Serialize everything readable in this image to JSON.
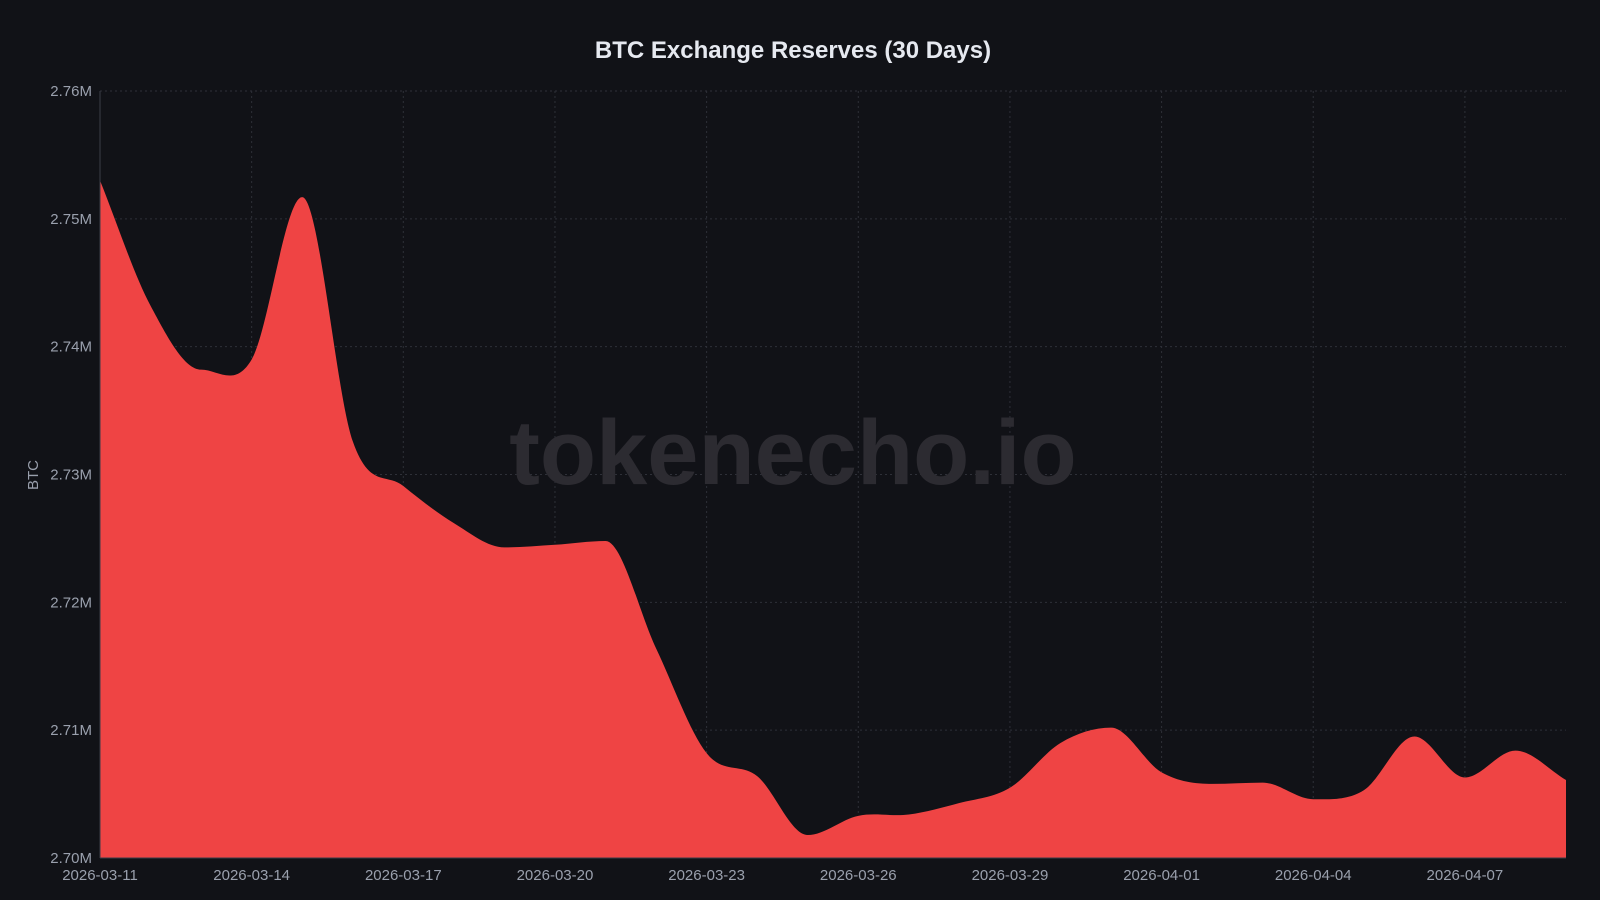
{
  "chart_data": {
    "type": "area",
    "title": "BTC Exchange Reserves (30 Days)",
    "xlabel": "",
    "ylabel": "BTC",
    "watermark": "tokenecho.io",
    "ylim": [
      2700000,
      2760000
    ],
    "y_ticks": [
      "2.70M",
      "2.71M",
      "2.72M",
      "2.73M",
      "2.74M",
      "2.75M",
      "2.76M"
    ],
    "x_ticks": [
      "2026-03-11",
      "2026-03-14",
      "2026-03-17",
      "2026-03-20",
      "2026-03-23",
      "2026-03-26",
      "2026-03-29",
      "2026-04-01",
      "2026-04-04",
      "2026-04-07"
    ],
    "grid": true,
    "legend": null,
    "fill_color": "#ef4444",
    "background_color": "#111217",
    "x": [
      "2026-03-11",
      "2026-03-12",
      "2026-03-13",
      "2026-03-14",
      "2026-03-15",
      "2026-03-16",
      "2026-03-17",
      "2026-03-18",
      "2026-03-19",
      "2026-03-20",
      "2026-03-21",
      "2026-03-22",
      "2026-03-23",
      "2026-03-24",
      "2026-03-25",
      "2026-03-26",
      "2026-03-27",
      "2026-03-28",
      "2026-03-29",
      "2026-03-30",
      "2026-03-31",
      "2026-04-01",
      "2026-04-02",
      "2026-04-03",
      "2026-04-04",
      "2026-04-05",
      "2026-04-06",
      "2026-04-07",
      "2026-04-08",
      "2026-04-09"
    ],
    "series": [
      {
        "name": "BTC Exchange Reserves",
        "values": [
          2753000,
          2743200,
          2738200,
          2739000,
          2751700,
          2732600,
          2729100,
          2726200,
          2724300,
          2724500,
          2724800,
          2716400,
          2708200,
          2706400,
          2701800,
          2703300,
          2703400,
          2704300,
          2705500,
          2709000,
          2710200,
          2706700,
          2705800,
          2705900,
          2704600,
          2705300,
          2709500,
          2706300,
          2708400,
          2706100
        ]
      }
    ]
  }
}
